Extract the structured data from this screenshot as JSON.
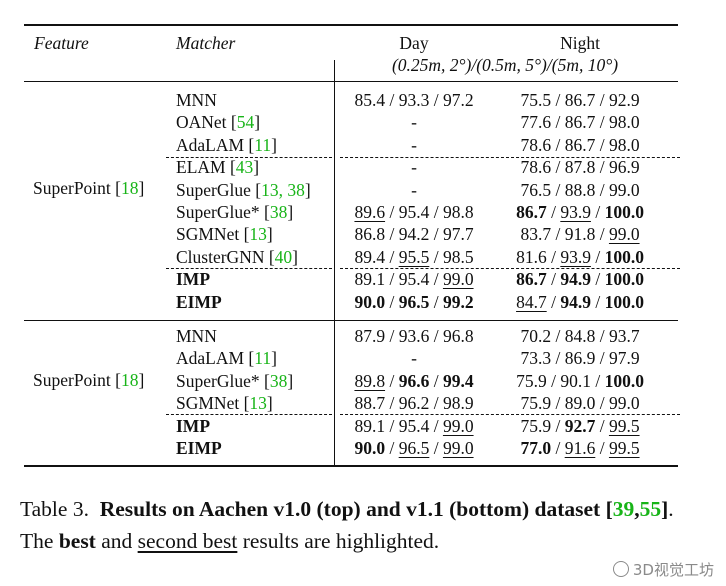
{
  "header": {
    "feature": "Feature",
    "matcher": "Matcher",
    "day": "Day",
    "night": "Night",
    "thresholds": "(0.25m, 2°)/(0.5m, 5°)/(5m, 10°)"
  },
  "top": {
    "feature": "SuperPoint",
    "feature_ref": "18",
    "rows": [
      {
        "m": "MNN",
        "ref": "",
        "day": [
          {
            "t": "85.4"
          },
          {
            "t": "93.3"
          },
          {
            "t": "97.2"
          }
        ],
        "night": [
          {
            "t": "75.5"
          },
          {
            "t": "86.7"
          },
          {
            "t": "92.9"
          }
        ]
      },
      {
        "m": "OANet",
        "ref": "54",
        "day": [
          {
            "t": "-"
          }
        ],
        "night": [
          {
            "t": "77.6"
          },
          {
            "t": "86.7"
          },
          {
            "t": "98.0"
          }
        ]
      },
      {
        "m": "AdaLAM",
        "ref": "11",
        "day": [
          {
            "t": "-"
          }
        ],
        "night": [
          {
            "t": "78.6"
          },
          {
            "t": "86.7"
          },
          {
            "t": "98.0"
          }
        ]
      },
      {
        "m": "ELAM",
        "ref": "43",
        "day": [
          {
            "t": "-"
          }
        ],
        "night": [
          {
            "t": "78.6"
          },
          {
            "t": "87.8"
          },
          {
            "t": "96.9"
          }
        ]
      },
      {
        "m": "SuperGlue",
        "ref": "13, 38",
        "day": [
          {
            "t": "-"
          }
        ],
        "night": [
          {
            "t": "76.5"
          },
          {
            "t": "88.8"
          },
          {
            "t": "99.0"
          }
        ]
      },
      {
        "m": "SuperGlue*",
        "ref": "38",
        "day": [
          {
            "t": "89.6",
            "u": 1
          },
          {
            "t": "95.4"
          },
          {
            "t": "98.8"
          }
        ],
        "night": [
          {
            "t": "86.7",
            "b": 1
          },
          {
            "t": "93.9",
            "u": 1
          },
          {
            "t": "100.0",
            "b": 1
          }
        ]
      },
      {
        "m": "SGMNet",
        "ref": "13",
        "day": [
          {
            "t": "86.8"
          },
          {
            "t": "94.2"
          },
          {
            "t": "97.7"
          }
        ],
        "night": [
          {
            "t": "83.7"
          },
          {
            "t": "91.8"
          },
          {
            "t": "99.0",
            "u": 1
          }
        ]
      },
      {
        "m": "ClusterGNN",
        "ref": "40",
        "day": [
          {
            "t": "89.4"
          },
          {
            "t": "95.5",
            "u": 1
          },
          {
            "t": "98.5"
          }
        ],
        "night": [
          {
            "t": "81.6"
          },
          {
            "t": "93.9",
            "u": 1
          },
          {
            "t": "100.0",
            "b": 1
          }
        ]
      },
      {
        "m": "IMP",
        "ref": "",
        "bold": 1,
        "day": [
          {
            "t": "89.1"
          },
          {
            "t": "95.4"
          },
          {
            "t": "99.0",
            "u": 1
          }
        ],
        "night": [
          {
            "t": "86.7",
            "b": 1
          },
          {
            "t": "94.9",
            "b": 1
          },
          {
            "t": "100.0",
            "b": 1
          }
        ]
      },
      {
        "m": "EIMP",
        "ref": "",
        "bold": 1,
        "day": [
          {
            "t": "90.0",
            "b": 1
          },
          {
            "t": "96.5",
            "b": 1
          },
          {
            "t": "99.2",
            "b": 1
          }
        ],
        "night": [
          {
            "t": "84.7",
            "u": 1
          },
          {
            "t": "94.9",
            "b": 1
          },
          {
            "t": "100.0",
            "b": 1
          }
        ]
      }
    ]
  },
  "bottom": {
    "feature": "SuperPoint",
    "feature_ref": "18",
    "rows": [
      {
        "m": "MNN",
        "ref": "",
        "day": [
          {
            "t": "87.9"
          },
          {
            "t": "93.6"
          },
          {
            "t": "96.8"
          }
        ],
        "night": [
          {
            "t": "70.2"
          },
          {
            "t": "84.8"
          },
          {
            "t": "93.7"
          }
        ]
      },
      {
        "m": "AdaLAM",
        "ref": "11",
        "day": [
          {
            "t": "-"
          }
        ],
        "night": [
          {
            "t": "73.3"
          },
          {
            "t": "86.9"
          },
          {
            "t": "97.9"
          }
        ]
      },
      {
        "m": "SuperGlue*",
        "ref": "38",
        "day": [
          {
            "t": "89.8",
            "u": 1
          },
          {
            "t": "96.6",
            "b": 1
          },
          {
            "t": "99.4",
            "b": 1
          }
        ],
        "night": [
          {
            "t": "75.9"
          },
          {
            "t": "90.1"
          },
          {
            "t": "100.0",
            "b": 1
          }
        ]
      },
      {
        "m": "SGMNet",
        "ref": "13",
        "day": [
          {
            "t": "88.7"
          },
          {
            "t": "96.2"
          },
          {
            "t": "98.9"
          }
        ],
        "night": [
          {
            "t": "75.9"
          },
          {
            "t": "89.0"
          },
          {
            "t": "99.0"
          }
        ]
      },
      {
        "m": "IMP",
        "ref": "",
        "bold": 1,
        "day": [
          {
            "t": "89.1"
          },
          {
            "t": "95.4"
          },
          {
            "t": "99.0",
            "u": 1
          }
        ],
        "night": [
          {
            "t": "75.9"
          },
          {
            "t": "92.7",
            "b": 1
          },
          {
            "t": "99.5",
            "u": 1
          }
        ]
      },
      {
        "m": "EIMP",
        "ref": "",
        "bold": 1,
        "day": [
          {
            "t": "90.0",
            "b": 1
          },
          {
            "t": "96.5",
            "u": 1
          },
          {
            "t": "99.0",
            "u": 1
          }
        ],
        "night": [
          {
            "t": "77.0",
            "b": 1
          },
          {
            "t": "91.6",
            "u": 1
          },
          {
            "t": "99.5",
            "u": 1
          }
        ]
      }
    ]
  },
  "caption": {
    "label": "Table 3.",
    "bold_text": "Results on Aachen v1.0 (top) and v1.1 (bottom) dataset",
    "refs": [
      "39",
      "55"
    ],
    "rest_before_best": ". The ",
    "best": "best",
    "and": " and ",
    "second_best": "second best",
    "tail": " results are highlighted."
  },
  "watermark": "3D视觉工坊"
}
